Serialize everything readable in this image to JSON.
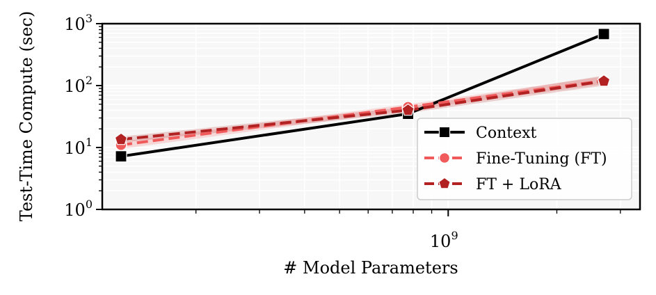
{
  "chart_data": {
    "type": "line",
    "xlabel": "# Model Parameters",
    "ylabel": "Test-Time Compute (sec)",
    "xscale": "log",
    "yscale": "log",
    "xlim": [
      110000000,
      3400000000
    ],
    "ylim": [
      1,
      1000
    ],
    "x_major_tick_labels": [
      {
        "base": "10",
        "exp": "9",
        "value": 1000000000
      }
    ],
    "y_major_tick_labels": [
      {
        "base": "10",
        "exp": "0",
        "value": 1
      },
      {
        "base": "10",
        "exp": "1",
        "value": 10
      },
      {
        "base": "10",
        "exp": "2",
        "value": 100
      },
      {
        "base": "10",
        "exp": "3",
        "value": 1000
      }
    ],
    "grid": true,
    "legend": "lower-right",
    "series": [
      {
        "name": "Context",
        "color": "#000000",
        "dashed": false,
        "marker": "square",
        "x": [
          124000000,
          774000000,
          2700000000
        ],
        "y": [
          7.2,
          35,
          680
        ]
      },
      {
        "name": "Fine-Tuning (FT)",
        "color": "#f05a5a",
        "dashed": true,
        "marker": "circle",
        "x": [
          124000000,
          774000000,
          2700000000
        ],
        "y": [
          11,
          45,
          120
        ],
        "band_low": [
          9.5,
          40,
          105
        ],
        "band_high": [
          12.5,
          50,
          140
        ]
      },
      {
        "name": "FT + LoRA",
        "color": "#b22222",
        "dashed": true,
        "marker": "pentagon",
        "x": [
          124000000,
          774000000,
          2700000000
        ],
        "y": [
          13.5,
          40,
          118
        ],
        "band_low": [
          12,
          36,
          100
        ],
        "band_high": [
          15,
          45,
          145
        ]
      }
    ]
  }
}
